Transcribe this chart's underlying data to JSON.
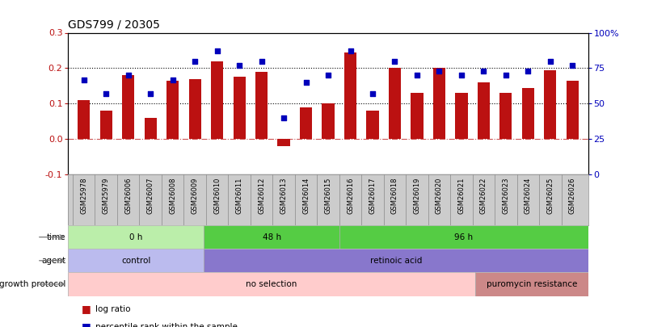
{
  "title": "GDS799 / 20305",
  "samples": [
    "GSM25978",
    "GSM25979",
    "GSM26006",
    "GSM26007",
    "GSM26008",
    "GSM26009",
    "GSM26010",
    "GSM26011",
    "GSM26012",
    "GSM26013",
    "GSM26014",
    "GSM26015",
    "GSM26016",
    "GSM26017",
    "GSM26018",
    "GSM26019",
    "GSM26020",
    "GSM26021",
    "GSM26022",
    "GSM26023",
    "GSM26024",
    "GSM26025",
    "GSM26026"
  ],
  "log_ratio": [
    0.11,
    0.08,
    0.18,
    0.06,
    0.165,
    0.17,
    0.22,
    0.175,
    0.19,
    -0.02,
    0.09,
    0.1,
    0.245,
    0.08,
    0.2,
    0.13,
    0.2,
    0.13,
    0.16,
    0.13,
    0.145,
    0.195,
    0.165
  ],
  "percentile": [
    67,
    57,
    70,
    57,
    67,
    80,
    87,
    77,
    80,
    40,
    65,
    70,
    87,
    57,
    80,
    70,
    73,
    70,
    73,
    70,
    73,
    80,
    77
  ],
  "left_ylim": [
    -0.1,
    0.3
  ],
  "right_ylim": [
    0,
    100
  ],
  "left_yticks": [
    -0.1,
    0.0,
    0.1,
    0.2,
    0.3
  ],
  "right_yticks": [
    0,
    25,
    50,
    75,
    100
  ],
  "bar_color": "#bb1111",
  "dot_color": "#0000bb",
  "zero_line_color": "#cc5555",
  "xtick_bg": "#cccccc",
  "time_groups": [
    {
      "label": "0 h",
      "start": 0,
      "end": 5,
      "color": "#bbeeaa"
    },
    {
      "label": "48 h",
      "start": 6,
      "end": 11,
      "color": "#55cc44"
    },
    {
      "label": "96 h",
      "start": 12,
      "end": 22,
      "color": "#55cc44"
    }
  ],
  "agent_groups": [
    {
      "label": "control",
      "start": 0,
      "end": 5,
      "color": "#bbbbee"
    },
    {
      "label": "retinoic acid",
      "start": 6,
      "end": 22,
      "color": "#8877cc"
    }
  ],
  "growth_groups": [
    {
      "label": "no selection",
      "start": 0,
      "end": 17,
      "color": "#ffcccc"
    },
    {
      "label": "puromycin resistance",
      "start": 18,
      "end": 22,
      "color": "#cc8888"
    }
  ],
  "legend_labels": [
    "log ratio",
    "percentile rank within the sample"
  ],
  "legend_colors": [
    "#bb1111",
    "#0000bb"
  ]
}
